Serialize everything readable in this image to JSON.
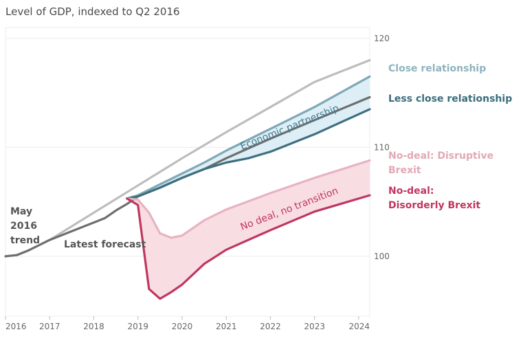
{
  "chart_data": {
    "type": "line",
    "title": "Level of GDP, indexed to Q2 2016",
    "xlabel": "",
    "ylabel": "",
    "x_ticks": [
      "2016",
      "2017",
      "2018",
      "2019",
      "2020",
      "2021",
      "2022",
      "2023",
      "2024"
    ],
    "y_ticks": [
      100,
      110,
      120
    ],
    "ylim": [
      94.5,
      121
    ],
    "xlim": [
      2016.0,
      2024.25
    ],
    "grid": true,
    "series": [
      {
        "name": "",
        "color": "#bdbdbd",
        "x": [
          2016.0,
          2016.25,
          2016.5,
          2016.75,
          2017.0,
          2018.0,
          2019.0,
          2020.0,
          2021.0,
          2022.0,
          2023.0,
          2024.25
        ],
        "y": [
          100.0,
          100.1,
          100.5,
          101.0,
          101.5,
          104.0,
          106.5,
          109.0,
          111.4,
          113.7,
          116.0,
          118.0
        ]
      },
      {
        "name": "Close relationship",
        "color": "#7fa8b5",
        "x": [
          2018.75,
          2019.0,
          2019.5,
          2020.0,
          2020.5,
          2021.0,
          2022.0,
          2023.0,
          2024.25
        ],
        "y": [
          105.3,
          105.6,
          106.6,
          107.6,
          108.6,
          109.7,
          111.7,
          113.7,
          116.5
        ]
      },
      {
        "name": "",
        "color": "#6e6e6e",
        "x": [
          2016.0,
          2016.25,
          2016.5,
          2016.75,
          2017.0,
          2017.5,
          2018.0,
          2018.25,
          2018.5,
          2018.75,
          2019.0,
          2019.5,
          2020.0,
          2020.5,
          2021.0,
          2022.0,
          2023.0,
          2024.25
        ],
        "y": [
          100.0,
          100.1,
          100.5,
          101.0,
          101.5,
          102.3,
          103.1,
          103.5,
          104.2,
          104.8,
          105.5,
          106.3,
          107.2,
          108.0,
          109.0,
          110.8,
          112.5,
          114.6
        ]
      },
      {
        "name": "Less close relationship",
        "color": "#3e7080",
        "x": [
          2018.75,
          2019.0,
          2019.5,
          2020.0,
          2020.5,
          2021.0,
          2021.5,
          2022.0,
          2023.0,
          2024.25
        ],
        "y": [
          105.3,
          105.5,
          106.3,
          107.2,
          108.0,
          108.6,
          109.0,
          109.6,
          111.2,
          113.5
        ]
      },
      {
        "name": "No-deal: Disruptive Brexit",
        "color": "#e8b3c1",
        "x": [
          2018.75,
          2019.0,
          2019.25,
          2019.5,
          2019.75,
          2020.0,
          2020.5,
          2021.0,
          2022.0,
          2023.0,
          2024.25
        ],
        "y": [
          105.3,
          105.2,
          104.0,
          102.1,
          101.7,
          101.9,
          103.3,
          104.3,
          105.8,
          107.2,
          108.8
        ]
      },
      {
        "name": "No-deal: Disorderly Brexit",
        "color": "#c0365f",
        "x": [
          2018.75,
          2019.0,
          2019.25,
          2019.5,
          2019.75,
          2020.0,
          2020.5,
          2021.0,
          2022.0,
          2023.0,
          2024.25
        ],
        "y": [
          105.3,
          104.7,
          97.0,
          96.1,
          96.7,
          97.4,
          99.3,
          100.6,
          102.4,
          104.1,
          105.6
        ]
      }
    ],
    "bands": [
      {
        "name": "Economic partnership",
        "upper": "Close relationship",
        "lower": "Less close relationship",
        "color": "#ddeef6"
      },
      {
        "name": "No deal, no transition",
        "upper": "No-deal: Disruptive Brexit",
        "lower": "No-deal: Disorderly Brexit",
        "color": "#f8dde3"
      }
    ],
    "annotations": {
      "trend": [
        "May",
        "2016",
        "trend"
      ],
      "forecast": "Latest forecast",
      "economic_partnership": "Economic partnership",
      "no_deal": "No deal, no transition"
    },
    "legend": [
      {
        "lines": [
          "Close relationship"
        ],
        "color": "#8fb3bd"
      },
      {
        "lines": [
          "Less close relationship"
        ],
        "color": "#3a6d7c"
      },
      {
        "lines": [
          "No-deal: Disruptive",
          "Brexit"
        ],
        "color": "#e1a8b6"
      },
      {
        "lines": [
          "No-deal:",
          "Disorderly Brexit"
        ],
        "color": "#c0365f"
      }
    ]
  }
}
